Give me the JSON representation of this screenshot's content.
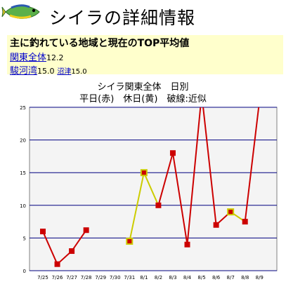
{
  "header": {
    "title": "シイラの詳細情報"
  },
  "summary": {
    "heading": "主に釣れている地域と現在のTOP平均値",
    "rows": [
      [
        {
          "name": "関東全体",
          "value": "12.2"
        }
      ],
      [
        {
          "name": "駿河湾",
          "value": "15.0"
        },
        {
          "name": "沼津",
          "value": "15.0"
        }
      ]
    ]
  },
  "chart_titles": [
    "シイラ関東全体　日別",
    "平日(赤)　休日(黄)　破線:近似"
  ],
  "colors": {
    "weekday": "#cc0000",
    "holiday": "#cccc00",
    "grid": "#000080",
    "plot_bg": "#f4f4f4",
    "summary_bg": "#ffffcc",
    "link": "#0000cc"
  },
  "chart_data": {
    "type": "line",
    "title": "シイラ関東全体　日別",
    "subtitle": "平日(赤)　休日(黄)　破線:近似",
    "xlabel": "",
    "ylabel": "",
    "categories": [
      "7/25",
      "7/26",
      "7/27",
      "7/28",
      "7/29",
      "7/30",
      "7/31",
      "8/1",
      "8/2",
      "8/3",
      "8/4",
      "8/5",
      "8/6",
      "8/7",
      "8/8",
      "8/9"
    ],
    "yticks": [
      0,
      5,
      10,
      15,
      20,
      25
    ],
    "ylim": [
      0,
      25
    ],
    "grid": true,
    "points": [
      {
        "x": "7/25",
        "y": 6,
        "type": "weekday"
      },
      {
        "x": "7/26",
        "y": 1,
        "type": "weekday"
      },
      {
        "x": "7/27",
        "y": 3,
        "type": "weekday"
      },
      {
        "x": "7/28",
        "y": 6.2,
        "type": "weekday"
      },
      {
        "x": "7/31",
        "y": 4.5,
        "type": "holiday"
      },
      {
        "x": "8/1",
        "y": 15,
        "type": "holiday"
      },
      {
        "x": "8/2",
        "y": 10,
        "type": "weekday"
      },
      {
        "x": "8/3",
        "y": 18,
        "type": "weekday"
      },
      {
        "x": "8/4",
        "y": 4,
        "type": "weekday"
      },
      {
        "x": "8/5",
        "y": 27,
        "type": "weekday"
      },
      {
        "x": "8/6",
        "y": 7,
        "type": "weekday"
      },
      {
        "x": "8/7",
        "y": 9,
        "type": "holiday"
      },
      {
        "x": "8/8",
        "y": 7.5,
        "type": "weekday"
      },
      {
        "x": "8/9",
        "y": 26,
        "type": "weekday"
      }
    ]
  }
}
